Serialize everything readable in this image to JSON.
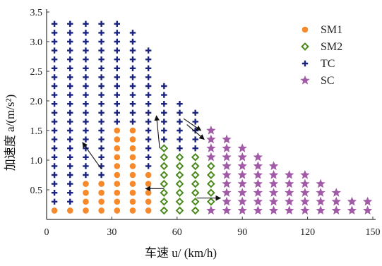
{
  "chart_data": {
    "type": "scatter",
    "title": "",
    "xlabel": "车速 u/ (km/h)",
    "ylabel": "加速度 a/(m/s²)",
    "xlim": [
      0,
      150
    ],
    "ylim": [
      0,
      3.5
    ],
    "x_ticks": [
      0,
      30,
      60,
      90,
      120,
      150
    ],
    "y_ticks": [
      0.5,
      1.0,
      1.5,
      2.0,
      2.5,
      3.0,
      3.5
    ],
    "x_tick_labels": [
      "0",
      "30",
      "60",
      "90",
      "120",
      "150"
    ],
    "y_tick_labels": [
      "0.5",
      "1.0",
      "1.5",
      "2.0",
      "2.5",
      "3.0",
      "3.5"
    ],
    "grid": false,
    "legend_position": "top-right",
    "series": [
      {
        "name": "SM1",
        "marker": "circle",
        "color": "#f5892b",
        "points": [
          [
            3.6,
            0.15
          ],
          [
            10.8,
            0.15
          ],
          [
            18,
            0.15
          ],
          [
            25.2,
            0.15
          ],
          [
            32.4,
            0.15
          ],
          [
            39.6,
            0.15
          ],
          [
            46.8,
            0.15
          ],
          [
            18,
            0.3
          ],
          [
            25.2,
            0.3
          ],
          [
            32.4,
            0.3
          ],
          [
            39.6,
            0.3
          ],
          [
            46.8,
            0.3
          ],
          [
            18,
            0.45
          ],
          [
            25.2,
            0.45
          ],
          [
            32.4,
            0.45
          ],
          [
            39.6,
            0.45
          ],
          [
            46.8,
            0.45
          ],
          [
            18,
            0.6
          ],
          [
            25.2,
            0.6
          ],
          [
            32.4,
            0.6
          ],
          [
            39.6,
            0.6
          ],
          [
            46.8,
            0.6
          ],
          [
            32.4,
            0.75
          ],
          [
            39.6,
            0.75
          ],
          [
            46.8,
            0.75
          ],
          [
            32.4,
            0.9
          ],
          [
            39.6,
            0.9
          ],
          [
            32.4,
            1.05
          ],
          [
            39.6,
            1.05
          ],
          [
            32.4,
            1.2
          ],
          [
            39.6,
            1.2
          ],
          [
            32.4,
            1.35
          ],
          [
            39.6,
            1.35
          ],
          [
            32.4,
            1.5
          ],
          [
            39.6,
            1.5
          ]
        ]
      },
      {
        "name": "SM2",
        "marker": "diamond",
        "color": "#4a8a1c",
        "points": [
          [
            54,
            0.15
          ],
          [
            61.2,
            0.15
          ],
          [
            68.4,
            0.15
          ],
          [
            54,
            0.3
          ],
          [
            61.2,
            0.3
          ],
          [
            68.4,
            0.3
          ],
          [
            75.6,
            0.3
          ],
          [
            54,
            0.45
          ],
          [
            61.2,
            0.45
          ],
          [
            68.4,
            0.45
          ],
          [
            75.6,
            0.45
          ],
          [
            54,
            0.6
          ],
          [
            61.2,
            0.6
          ],
          [
            68.4,
            0.6
          ],
          [
            75.6,
            0.6
          ],
          [
            54,
            0.75
          ],
          [
            61.2,
            0.75
          ],
          [
            68.4,
            0.75
          ],
          [
            75.6,
            0.75
          ],
          [
            54,
            0.9
          ],
          [
            61.2,
            0.9
          ],
          [
            68.4,
            0.9
          ],
          [
            75.6,
            0.9
          ],
          [
            54,
            1.05
          ],
          [
            61.2,
            1.05
          ],
          [
            68.4,
            1.05
          ],
          [
            54,
            1.2
          ]
        ]
      },
      {
        "name": "TC",
        "marker": "plus",
        "color": "#1a237e",
        "points": [
          [
            3.6,
            0.3
          ],
          [
            3.6,
            0.45
          ],
          [
            3.6,
            0.6
          ],
          [
            3.6,
            0.75
          ],
          [
            3.6,
            0.9
          ],
          [
            3.6,
            1.05
          ],
          [
            3.6,
            1.2
          ],
          [
            3.6,
            1.35
          ],
          [
            3.6,
            1.5
          ],
          [
            3.6,
            1.65
          ],
          [
            3.6,
            1.8
          ],
          [
            3.6,
            1.95
          ],
          [
            3.6,
            2.1
          ],
          [
            3.6,
            2.25
          ],
          [
            3.6,
            2.4
          ],
          [
            3.6,
            2.55
          ],
          [
            3.6,
            2.7
          ],
          [
            3.6,
            2.85
          ],
          [
            3.6,
            3.0
          ],
          [
            3.6,
            3.15
          ],
          [
            3.6,
            3.3
          ],
          [
            10.8,
            0.3
          ],
          [
            10.8,
            0.45
          ],
          [
            10.8,
            0.6
          ],
          [
            10.8,
            0.75
          ],
          [
            10.8,
            0.9
          ],
          [
            10.8,
            1.05
          ],
          [
            10.8,
            1.2
          ],
          [
            10.8,
            1.35
          ],
          [
            10.8,
            1.5
          ],
          [
            10.8,
            1.65
          ],
          [
            10.8,
            1.8
          ],
          [
            10.8,
            1.95
          ],
          [
            10.8,
            2.1
          ],
          [
            10.8,
            2.25
          ],
          [
            10.8,
            2.4
          ],
          [
            10.8,
            2.55
          ],
          [
            10.8,
            2.7
          ],
          [
            10.8,
            2.85
          ],
          [
            10.8,
            3.0
          ],
          [
            10.8,
            3.15
          ],
          [
            10.8,
            3.3
          ],
          [
            18,
            0.75
          ],
          [
            18,
            0.9
          ],
          [
            18,
            1.05
          ],
          [
            18,
            1.2
          ],
          [
            18,
            1.35
          ],
          [
            18,
            1.5
          ],
          [
            18,
            1.65
          ],
          [
            18,
            1.8
          ],
          [
            18,
            1.95
          ],
          [
            18,
            2.1
          ],
          [
            18,
            2.25
          ],
          [
            18,
            2.4
          ],
          [
            18,
            2.55
          ],
          [
            18,
            2.7
          ],
          [
            18,
            2.85
          ],
          [
            18,
            3.0
          ],
          [
            18,
            3.15
          ],
          [
            18,
            3.3
          ],
          [
            25.2,
            0.75
          ],
          [
            25.2,
            0.9
          ],
          [
            25.2,
            1.05
          ],
          [
            25.2,
            1.2
          ],
          [
            25.2,
            1.35
          ],
          [
            25.2,
            1.5
          ],
          [
            25.2,
            1.65
          ],
          [
            25.2,
            1.8
          ],
          [
            25.2,
            1.95
          ],
          [
            25.2,
            2.1
          ],
          [
            25.2,
            2.25
          ],
          [
            25.2,
            2.4
          ],
          [
            25.2,
            2.55
          ],
          [
            25.2,
            2.7
          ],
          [
            25.2,
            2.85
          ],
          [
            25.2,
            3.0
          ],
          [
            25.2,
            3.15
          ],
          [
            25.2,
            3.3
          ],
          [
            32.4,
            1.65
          ],
          [
            32.4,
            1.8
          ],
          [
            32.4,
            1.95
          ],
          [
            32.4,
            2.1
          ],
          [
            32.4,
            2.25
          ],
          [
            32.4,
            2.4
          ],
          [
            32.4,
            2.55
          ],
          [
            32.4,
            2.7
          ],
          [
            32.4,
            2.85
          ],
          [
            32.4,
            3.0
          ],
          [
            32.4,
            3.15
          ],
          [
            32.4,
            3.3
          ],
          [
            39.6,
            1.65
          ],
          [
            39.6,
            1.8
          ],
          [
            39.6,
            1.95
          ],
          [
            39.6,
            2.1
          ],
          [
            39.6,
            2.25
          ],
          [
            39.6,
            2.4
          ],
          [
            39.6,
            2.55
          ],
          [
            39.6,
            2.7
          ],
          [
            39.6,
            2.85
          ],
          [
            39.6,
            3.0
          ],
          [
            39.6,
            3.15
          ],
          [
            46.8,
            0.9
          ],
          [
            46.8,
            1.05
          ],
          [
            46.8,
            1.2
          ],
          [
            46.8,
            1.35
          ],
          [
            46.8,
            1.5
          ],
          [
            46.8,
            1.65
          ],
          [
            46.8,
            1.8
          ],
          [
            46.8,
            1.95
          ],
          [
            46.8,
            2.1
          ],
          [
            46.8,
            2.25
          ],
          [
            46.8,
            2.4
          ],
          [
            46.8,
            2.55
          ],
          [
            46.8,
            2.7
          ],
          [
            46.8,
            2.85
          ],
          [
            54,
            1.35
          ],
          [
            54,
            1.5
          ],
          [
            54,
            1.65
          ],
          [
            54,
            1.8
          ],
          [
            54,
            1.95
          ],
          [
            54,
            2.1
          ],
          [
            54,
            2.25
          ],
          [
            61.2,
            1.2
          ],
          [
            61.2,
            1.35
          ],
          [
            61.2,
            1.5
          ],
          [
            61.2,
            1.65
          ],
          [
            61.2,
            1.8
          ],
          [
            61.2,
            1.95
          ],
          [
            68.4,
            1.2
          ],
          [
            68.4,
            1.35
          ],
          [
            68.4,
            1.5
          ],
          [
            68.4,
            1.65
          ],
          [
            68.4,
            1.8
          ]
        ]
      },
      {
        "name": "SC",
        "marker": "star",
        "color": "#a05aa6",
        "points": [
          [
            75.6,
            0.15
          ],
          [
            82.8,
            0.15
          ],
          [
            90,
            0.15
          ],
          [
            97.2,
            0.15
          ],
          [
            104.4,
            0.15
          ],
          [
            111.6,
            0.15
          ],
          [
            118.8,
            0.15
          ],
          [
            126,
            0.15
          ],
          [
            133.2,
            0.15
          ],
          [
            140.4,
            0.15
          ],
          [
            147.6,
            0.15
          ],
          [
            75.6,
            1.05
          ],
          [
            75.6,
            1.2
          ],
          [
            75.6,
            1.35
          ],
          [
            75.6,
            1.5
          ],
          [
            82.8,
            0.3
          ],
          [
            82.8,
            0.45
          ],
          [
            82.8,
            0.6
          ],
          [
            82.8,
            0.75
          ],
          [
            82.8,
            0.9
          ],
          [
            82.8,
            1.05
          ],
          [
            82.8,
            1.2
          ],
          [
            82.8,
            1.35
          ],
          [
            90,
            0.3
          ],
          [
            90,
            0.45
          ],
          [
            90,
            0.6
          ],
          [
            90,
            0.75
          ],
          [
            90,
            0.9
          ],
          [
            90,
            1.05
          ],
          [
            90,
            1.2
          ],
          [
            97.2,
            0.3
          ],
          [
            97.2,
            0.45
          ],
          [
            97.2,
            0.6
          ],
          [
            97.2,
            0.75
          ],
          [
            97.2,
            0.9
          ],
          [
            97.2,
            1.05
          ],
          [
            104.4,
            0.3
          ],
          [
            104.4,
            0.45
          ],
          [
            104.4,
            0.6
          ],
          [
            104.4,
            0.75
          ],
          [
            104.4,
            0.9
          ],
          [
            111.6,
            0.3
          ],
          [
            111.6,
            0.45
          ],
          [
            111.6,
            0.6
          ],
          [
            111.6,
            0.75
          ],
          [
            118.8,
            0.3
          ],
          [
            118.8,
            0.45
          ],
          [
            118.8,
            0.6
          ],
          [
            118.8,
            0.75
          ],
          [
            126,
            0.3
          ],
          [
            126,
            0.45
          ],
          [
            126,
            0.6
          ],
          [
            133.2,
            0.3
          ],
          [
            133.2,
            0.45
          ],
          [
            140.4,
            0.3
          ],
          [
            147.6,
            0.3
          ]
        ]
      }
    ],
    "arrows": [
      {
        "from": [
          25.2,
          0.85
        ],
        "to": [
          16.5,
          1.3
        ]
      },
      {
        "from": [
          52,
          1.2
        ],
        "to": [
          50.5,
          1.75
        ]
      },
      {
        "from": [
          54,
          0.52
        ],
        "to": [
          45.5,
          0.52
        ]
      },
      {
        "from": [
          63,
          1.7
        ],
        "to": [
          71,
          1.5
        ]
      },
      {
        "from": [
          64.5,
          1.6
        ],
        "to": [
          72.5,
          1.35
        ]
      },
      {
        "from": [
          69,
          0.36
        ],
        "to": [
          80,
          0.36
        ]
      }
    ]
  }
}
